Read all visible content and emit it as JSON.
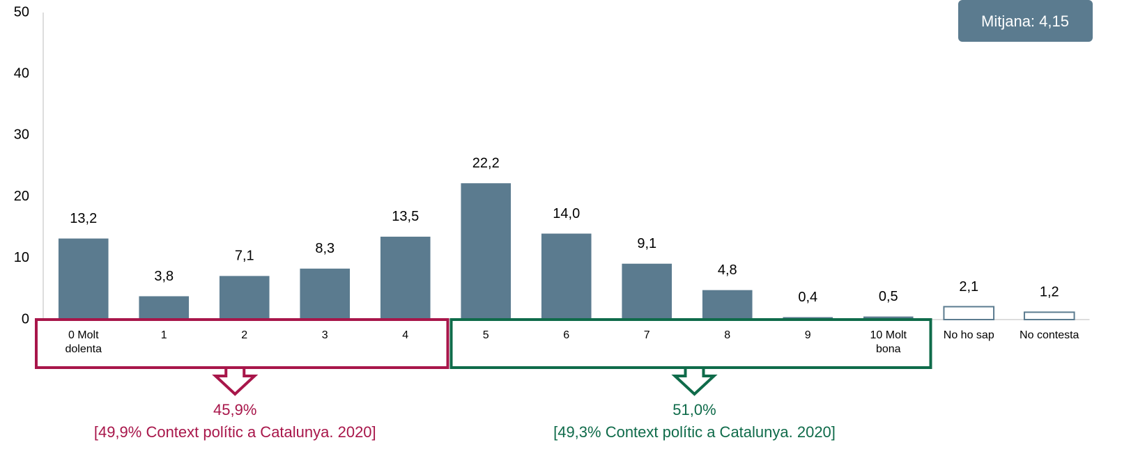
{
  "chart_data": {
    "type": "bar",
    "categories": [
      "0 Molt\ndolenta",
      "1",
      "2",
      "3",
      "4",
      "5",
      "6",
      "7",
      "8",
      "9",
      "10 Molt\nbona",
      "No ho sap",
      "No contesta"
    ],
    "values": [
      13.2,
      3.8,
      7.1,
      8.3,
      13.5,
      22.2,
      14.0,
      9.1,
      4.8,
      0.4,
      0.5,
      2.1,
      1.2
    ],
    "value_labels": [
      "13,2",
      "3,8",
      "7,1",
      "8,3",
      "13,5",
      "22,2",
      "14,0",
      "9,1",
      "4,8",
      "0,4",
      "0,5",
      "2,1",
      "1,2"
    ],
    "colors": [
      "#5b7b8f",
      "#5b7b8f",
      "#5b7b8f",
      "#5b7b8f",
      "#5b7b8f",
      "#5b7b8f",
      "#5b7b8f",
      "#5b7b8f",
      "#5b7b8f",
      "#5b7b8f",
      "#5b7b8f",
      "#ffffff",
      "#ffffff"
    ],
    "edge_color": "#5b7b8f",
    "ylim": [
      0,
      50
    ],
    "yticks": [
      0,
      10,
      20,
      30,
      40,
      50
    ],
    "grid": false,
    "mean_label": "Mitjana: 4,15",
    "groups": [
      {
        "label": "45,9%",
        "note": "[49,9% Context polític a Catalunya. 2020]",
        "color": "#a8164a"
      },
      {
        "label": "51,0%",
        "note": "[49,3% Context polític a Catalunya. 2020]",
        "color": "#0f6b4a"
      }
    ]
  }
}
